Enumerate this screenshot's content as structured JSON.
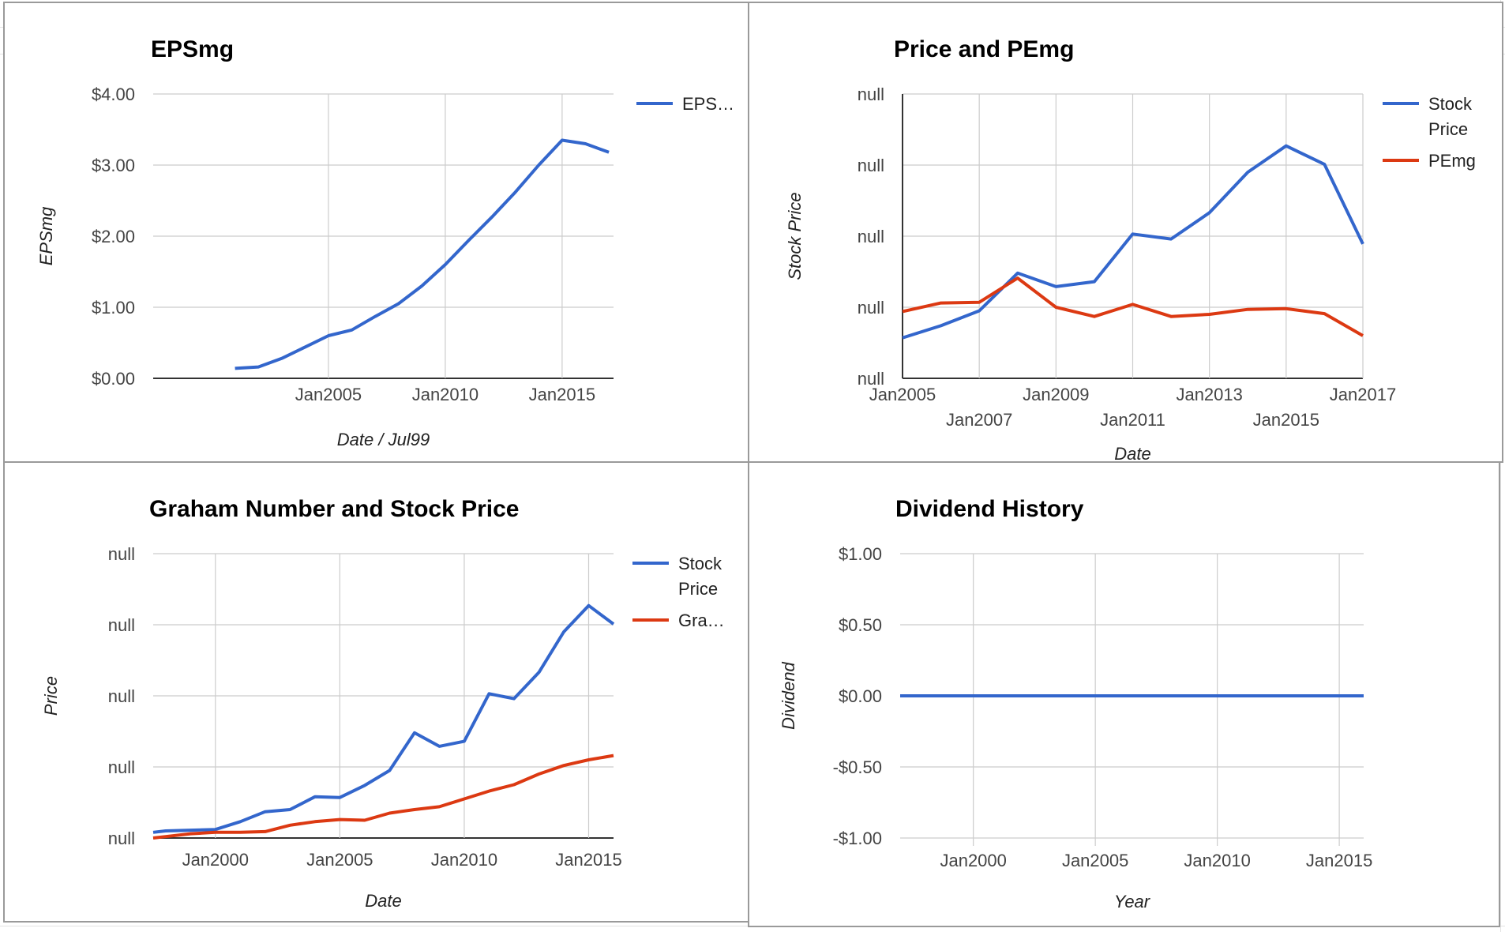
{
  "charts": [
    {
      "title": "EPSmg",
      "chart_data": {
        "type": "line",
        "title": "EPSmg",
        "xlabel": "Date / Jul99",
        "ylabel": "EPSmg",
        "x_ticks": [
          "Jan2005",
          "Jan2010",
          "Jan2015"
        ],
        "y_ticks": [
          "$4.00",
          "$3.00",
          "$2.00",
          "$1.00",
          "$0.00"
        ],
        "ylim": [
          0,
          4
        ],
        "legend_position": "right",
        "series": [
          {
            "name": "EPS…",
            "color": "#3366cc",
            "x": [
              "Jan2001",
              "Jan2002",
              "Jan2003",
              "Jan2004",
              "Jan2005",
              "Jan2006",
              "Jan2007",
              "Jan2008",
              "Jan2009",
              "Jan2010",
              "Jan2011",
              "Jan2012",
              "Jan2013",
              "Jan2014",
              "Jan2015",
              "Jan2016",
              "Jan2017"
            ],
            "values": [
              0.14,
              0.16,
              0.28,
              0.44,
              0.6,
              0.68,
              0.87,
              1.05,
              1.3,
              1.6,
              1.94,
              2.27,
              2.62,
              3.0,
              3.35,
              3.3,
              3.18
            ]
          }
        ]
      }
    },
    {
      "title": "Price and PEmg",
      "chart_data": {
        "type": "line",
        "title": "Price and PEmg",
        "xlabel": "Date",
        "ylabel": "Stock Price",
        "x_ticks": [
          "Jan2005",
          "Jan2007",
          "Jan2009",
          "Jan2011",
          "Jan2013",
          "Jan2015",
          "Jan2017"
        ],
        "y_ticks": [
          "null",
          "null",
          "null",
          "null",
          "null"
        ],
        "legend_position": "right",
        "series": [
          {
            "name": "Stock Price",
            "color": "#3366cc",
            "x": [
              "Jan2005",
              "Jan2006",
              "Jan2007",
              "Jan2008",
              "Jan2009",
              "Jan2010",
              "Jan2011",
              "Jan2012",
              "Jan2013",
              "Jan2014",
              "Jan2015",
              "Jan2016",
              "Jan2017"
            ],
            "values": [
              0.57,
              0.74,
              0.95,
              1.48,
              1.29,
              1.36,
              2.03,
              1.96,
              2.33,
              2.9,
              3.27,
              3.01,
              1.89
            ]
          },
          {
            "name": "PEmg",
            "color": "#dc3912",
            "x": [
              "Jan2005",
              "Jan2006",
              "Jan2007",
              "Jan2008",
              "Jan2009",
              "Jan2010",
              "Jan2011",
              "Jan2012",
              "Jan2013",
              "Jan2014",
              "Jan2015",
              "Jan2016",
              "Jan2017"
            ],
            "values": [
              0.94,
              1.06,
              1.07,
              1.41,
              1.0,
              0.87,
              1.04,
              0.87,
              0.9,
              0.97,
              0.98,
              0.91,
              0.6
            ]
          }
        ]
      }
    },
    {
      "title": "Graham Number and Stock Price",
      "chart_data": {
        "type": "line",
        "title": "Graham Number and Stock Price",
        "xlabel": "Date",
        "ylabel": "Price",
        "x_ticks": [
          "Jan2000",
          "Jan2005",
          "Jan2010",
          "Jan2015"
        ],
        "y_ticks": [
          "null",
          "null",
          "null",
          "null",
          "null"
        ],
        "legend_position": "right",
        "series": [
          {
            "name": "Stock Price",
            "color": "#3366cc",
            "x": [
              "Jul1997",
              "Jan1998",
              "Jan1999",
              "Jan2000",
              "Jan2001",
              "Jan2002",
              "Jan2003",
              "Jan2004",
              "Jan2005",
              "Jan2006",
              "Jan2007",
              "Jan2008",
              "Jan2009",
              "Jan2010",
              "Jan2011",
              "Jan2012",
              "Jan2013",
              "Jan2014",
              "Jan2015",
              "Jan2016"
            ],
            "values": [
              0.08,
              0.1,
              0.11,
              0.12,
              0.23,
              0.37,
              0.4,
              0.58,
              0.57,
              0.74,
              0.95,
              1.48,
              1.29,
              1.36,
              2.03,
              1.96,
              2.33,
              2.9,
              3.27,
              3.01
            ]
          },
          {
            "name": "Gra…",
            "color": "#dc3912",
            "x": [
              "Jul1997",
              "Jan1998",
              "Jan1999",
              "Jan2000",
              "Jan2001",
              "Jan2002",
              "Jan2003",
              "Jan2004",
              "Jan2005",
              "Jan2006",
              "Jan2007",
              "Jan2008",
              "Jan2009",
              "Jan2010",
              "Jan2011",
              "Jan2012",
              "Jan2013",
              "Jan2014",
              "Jan2015",
              "Jan2016"
            ],
            "values": [
              0.0,
              0.02,
              0.06,
              0.08,
              0.08,
              0.09,
              0.18,
              0.23,
              0.26,
              0.25,
              0.35,
              0.4,
              0.44,
              0.55,
              0.66,
              0.75,
              0.9,
              1.02,
              1.1,
              1.16
            ]
          }
        ]
      }
    },
    {
      "title": "Dividend History",
      "chart_data": {
        "type": "line",
        "title": "Dividend History",
        "xlabel": "Year",
        "ylabel": "Dividend",
        "x_ticks": [
          "Jan2000",
          "Jan2005",
          "Jan2010",
          "Jan2015"
        ],
        "y_ticks": [
          "$1.00",
          "$0.50",
          "$0.00",
          "-$0.50",
          "-$1.00"
        ],
        "ylim": [
          -1,
          1
        ],
        "series": [
          {
            "color": "#3366cc",
            "x": [
              "Jan1997",
              "Jan2016"
            ],
            "values": [
              0.0,
              0.0
            ]
          }
        ]
      }
    }
  ]
}
